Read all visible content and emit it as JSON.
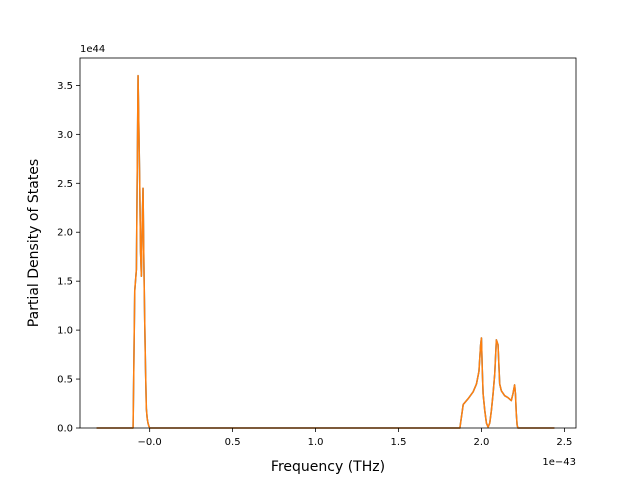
{
  "chart_data": {
    "type": "line",
    "title": "",
    "xlabel": "Frequency (THz)",
    "ylabel": "Partial Density of States",
    "x_offset_text": "1e−43",
    "y_offset_text": "1e44",
    "xlim": [
      -0.42,
      2.57
    ],
    "ylim": [
      0,
      3.78
    ],
    "x_ticks": [
      0.0,
      0.5,
      1.0,
      1.5,
      2.0,
      2.5
    ],
    "x_tick_labels": [
      "−0.0",
      "0.5",
      "1.0",
      "1.5",
      "2.0",
      "2.5"
    ],
    "y_ticks": [
      0.0,
      0.5,
      1.0,
      1.5,
      2.0,
      2.5,
      3.0,
      3.5
    ],
    "y_tick_labels": [
      "0.0",
      "0.5",
      "1.0",
      "1.5",
      "2.0",
      "2.5",
      "3.0",
      "3.5"
    ],
    "grid": false,
    "legend": "none",
    "series": [
      {
        "color": "#1f77b4",
        "x": [
          -0.32,
          -0.1,
          -0.09,
          -0.08,
          -0.07,
          -0.06,
          -0.055,
          -0.05,
          -0.045,
          -0.04,
          -0.035,
          -0.03,
          -0.025,
          -0.02,
          -0.015,
          -0.01,
          -0.005,
          0.0,
          0.01,
          0.02,
          1.87,
          1.89,
          1.92,
          1.95,
          1.97,
          1.985,
          1.995,
          2.0,
          2.005,
          2.01,
          2.02,
          2.03,
          2.04,
          2.05,
          2.06,
          2.07,
          2.08,
          2.09,
          2.1,
          2.105,
          2.11,
          2.12,
          2.14,
          2.16,
          2.18,
          2.19,
          2.2,
          2.205,
          2.21,
          2.215,
          2.22,
          2.44
        ],
        "y": [
          0.0,
          0.0,
          1.4,
          1.62,
          3.6,
          2.5,
          1.8,
          1.55,
          2.1,
          2.45,
          1.7,
          1.1,
          0.6,
          0.2,
          0.1,
          0.05,
          0.02,
          0.0,
          0.0,
          0.0,
          0.0,
          0.24,
          0.3,
          0.37,
          0.45,
          0.58,
          0.85,
          0.92,
          0.6,
          0.35,
          0.18,
          0.05,
          0.01,
          0.05,
          0.18,
          0.35,
          0.55,
          0.9,
          0.85,
          0.65,
          0.45,
          0.38,
          0.33,
          0.31,
          0.28,
          0.35,
          0.44,
          0.35,
          0.15,
          0.03,
          0.0,
          0.0
        ]
      },
      {
        "color": "#ff7f0e",
        "x": [
          -0.32,
          -0.1,
          -0.09,
          -0.08,
          -0.07,
          -0.06,
          -0.055,
          -0.05,
          -0.045,
          -0.04,
          -0.035,
          -0.03,
          -0.025,
          -0.02,
          -0.015,
          -0.01,
          -0.005,
          0.0,
          0.01,
          0.02,
          1.87,
          1.89,
          1.92,
          1.95,
          1.97,
          1.985,
          1.995,
          2.0,
          2.005,
          2.01,
          2.02,
          2.03,
          2.04,
          2.05,
          2.06,
          2.07,
          2.08,
          2.09,
          2.1,
          2.105,
          2.11,
          2.12,
          2.14,
          2.16,
          2.18,
          2.19,
          2.2,
          2.205,
          2.21,
          2.215,
          2.22,
          2.44
        ],
        "y": [
          0.0,
          0.0,
          1.4,
          1.62,
          3.6,
          2.5,
          1.8,
          1.55,
          2.1,
          2.45,
          1.7,
          1.1,
          0.6,
          0.2,
          0.1,
          0.05,
          0.02,
          0.0,
          0.0,
          0.0,
          0.0,
          0.24,
          0.3,
          0.37,
          0.45,
          0.58,
          0.85,
          0.92,
          0.6,
          0.35,
          0.18,
          0.05,
          0.01,
          0.05,
          0.18,
          0.35,
          0.55,
          0.9,
          0.85,
          0.65,
          0.45,
          0.38,
          0.33,
          0.31,
          0.28,
          0.35,
          0.44,
          0.35,
          0.15,
          0.03,
          0.0,
          0.0
        ]
      }
    ]
  }
}
